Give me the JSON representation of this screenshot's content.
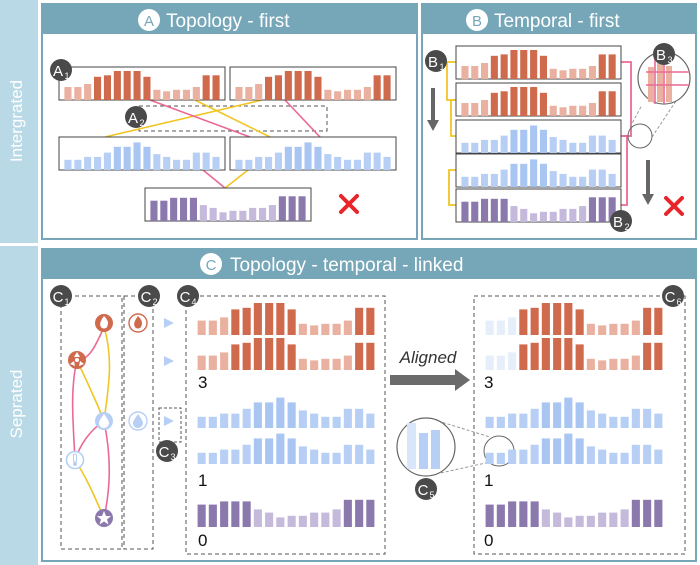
{
  "rows": {
    "integrated": "Intergrated",
    "separated": "Seprated"
  },
  "panels": {
    "a": {
      "badge": "A",
      "title": "Topology - first"
    },
    "b": {
      "badge": "B",
      "title": "Temporal - first"
    },
    "c": {
      "badge": "C",
      "title": "Topology - temporal - linked"
    }
  },
  "markers": {
    "a1": {
      "letter": "A",
      "sub": "1"
    },
    "a2": {
      "letter": "A",
      "sub": "2"
    },
    "b1": {
      "letter": "B",
      "sub": "1"
    },
    "b2": {
      "letter": "B",
      "sub": "2"
    },
    "b3": {
      "letter": "B",
      "sub": "3"
    },
    "c1": {
      "letter": "C",
      "sub": "1"
    },
    "c2": {
      "letter": "C",
      "sub": "2"
    },
    "c3": {
      "letter": "C",
      "sub": "3"
    },
    "c4": {
      "letter": "C",
      "sub": "4"
    },
    "c5": {
      "letter": "C",
      "sub": "5"
    },
    "c6": {
      "letter": "C",
      "sub": "6"
    }
  },
  "aligned_label": "Aligned",
  "groups": [
    {
      "count": "3",
      "color": "orange"
    },
    {
      "count": "1",
      "color": "blue"
    },
    {
      "count": "0",
      "color": "purple"
    }
  ],
  "colors": {
    "header": "#76a7b9",
    "side": "#b9d9e6",
    "orange": "#d06a4c",
    "orange_light": "#eab0a0",
    "blue": "#b7cff5",
    "blue_light": "#d8e5fa",
    "purple": "#8b78ad",
    "purple_light": "#c5badb",
    "yellow": "#f1c524",
    "pink": "#ea6a96",
    "badge": "#4a4a4a",
    "cross": "#e8262a"
  },
  "series": {
    "orange": [
      0.45,
      0.45,
      0.55,
      0.8,
      0.85,
      1,
      1,
      1,
      0.8,
      0.35,
      0.3,
      0.35,
      0.35,
      0.45,
      0.85,
      0.85
    ],
    "blue": [
      0.35,
      0.35,
      0.45,
      0.45,
      0.6,
      0.8,
      0.8,
      0.95,
      0.8,
      0.55,
      0.45,
      0.35,
      0.35,
      0.6,
      0.6,
      0.45
    ],
    "purple": [
      0.7,
      0.7,
      0.8,
      0.8,
      0.8,
      0.55,
      0.45,
      0.3,
      0.35,
      0.35,
      0.45,
      0.45,
      0.55,
      0.85,
      0.85,
      0.85
    ]
  }
}
